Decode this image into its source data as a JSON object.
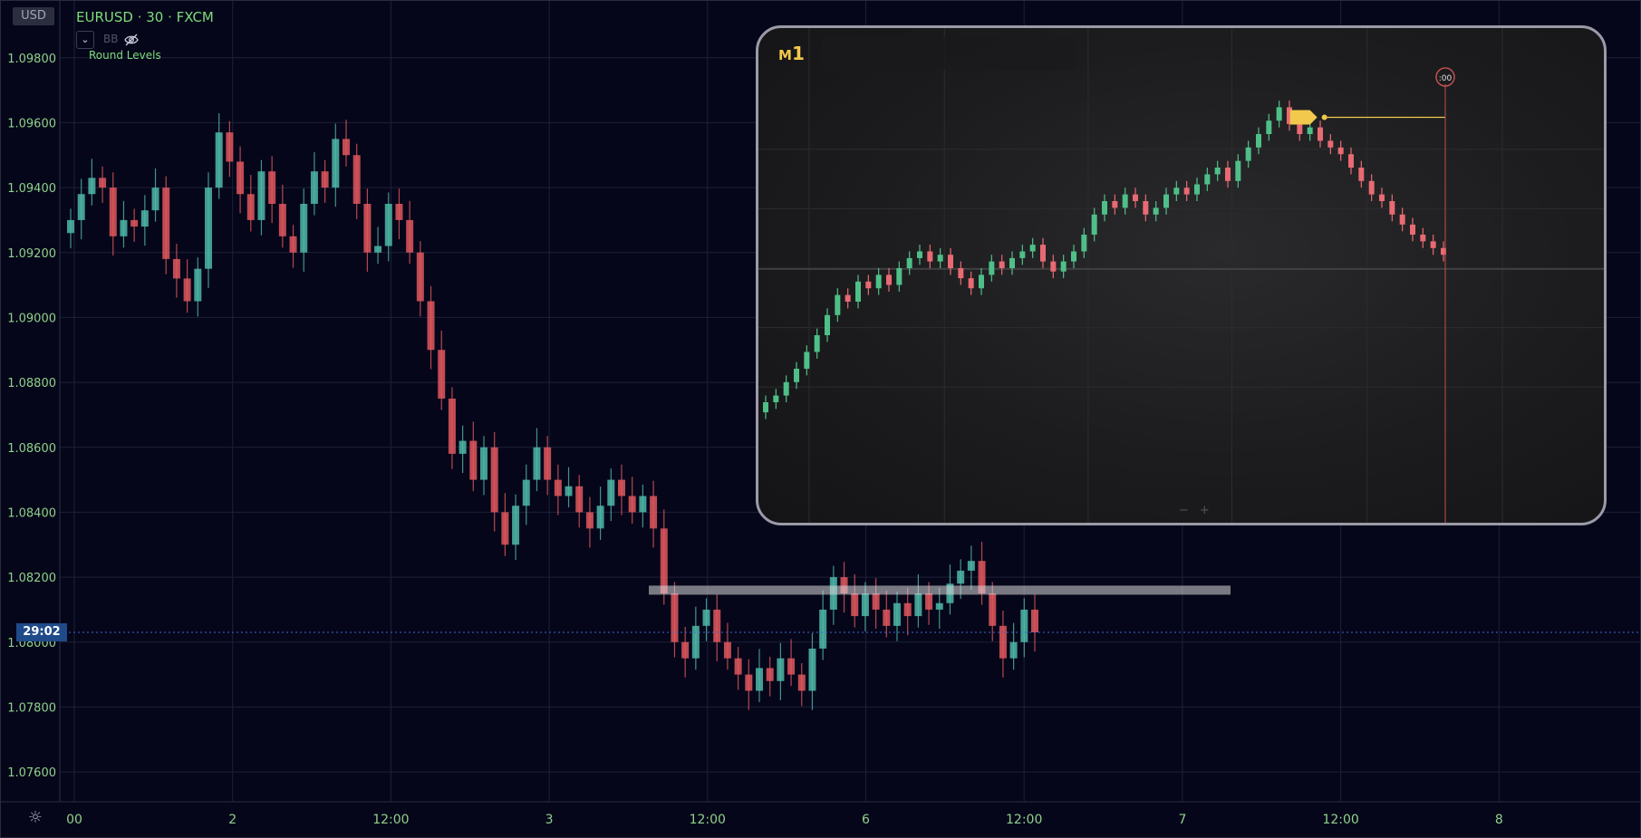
{
  "header": {
    "currency_badge": "USD",
    "symbol_line": "EURUSD · 30 · FXCM",
    "indicator_label": "BB",
    "round_levels_label": "Round Levels",
    "chevron": "⌄",
    "icons": [
      "chevron-down-icon",
      "eye-off-icon",
      "settings-icon"
    ]
  },
  "countdown_badge": "29:02",
  "colors": {
    "background": "#06061a",
    "grid": "#1c2138",
    "up_candle": "#4fb8a8",
    "down_candle": "#e0585e",
    "axis_text": "#8fd18a",
    "countdown_bg": "#1f4a8a",
    "inset_up": "#4fbf88",
    "inset_down": "#e86a72",
    "inset_marker": "#f2c94c"
  },
  "chart_data": [
    {
      "type": "candlestick",
      "title": "EURUSD · 30 · FXCM",
      "xlabel": "",
      "ylabel": "",
      "ylim": [
        1.0755,
        1.0995
      ],
      "y_ticks": [
        "1.09800",
        "1.09600",
        "1.09400",
        "1.09200",
        "1.09000",
        "1.08800",
        "1.08600",
        "1.08400",
        "1.08200",
        "1.08000",
        "1.07800",
        "1.07600"
      ],
      "y_tick_values": [
        1.098,
        1.096,
        1.094,
        1.092,
        1.09,
        1.088,
        1.086,
        1.084,
        1.082,
        1.08,
        1.078,
        1.076
      ],
      "x_ticks": [
        "00",
        "2",
        "12:00",
        "3",
        "12:00",
        "6",
        "12:00",
        "7",
        "12:00",
        "8"
      ],
      "grid": true,
      "current_price": 1.0803,
      "close_series": [
        1.093,
        1.0938,
        1.0943,
        1.094,
        1.0925,
        1.093,
        1.0928,
        1.0933,
        1.094,
        1.0918,
        1.0912,
        1.0905,
        1.0915,
        1.094,
        1.0957,
        1.0948,
        1.0938,
        1.093,
        1.0945,
        1.0935,
        1.0925,
        1.092,
        1.0935,
        1.0945,
        1.094,
        1.0955,
        1.095,
        1.0935,
        1.092,
        1.0922,
        1.0935,
        1.093,
        1.092,
        1.0905,
        1.089,
        1.0875,
        1.0858,
        1.0862,
        1.085,
        1.086,
        1.084,
        1.083,
        1.0842,
        1.085,
        1.086,
        1.085,
        1.0845,
        1.0848,
        1.084,
        1.0835,
        1.0842,
        1.085,
        1.0845,
        1.084,
        1.0845,
        1.0835,
        1.0815,
        1.08,
        1.0795,
        1.0805,
        1.081,
        1.08,
        1.0795,
        1.079,
        1.0785,
        1.0792,
        1.0788,
        1.0795,
        1.079,
        1.0785,
        1.0798,
        1.081,
        1.082,
        1.0815,
        1.0808,
        1.0815,
        1.081,
        1.0805,
        1.0812,
        1.0808,
        1.0815,
        1.081,
        1.0812,
        1.0818,
        1.0822,
        1.0825,
        1.0815,
        1.0805,
        1.0795,
        1.08,
        1.081,
        1.0803
      ]
    },
    {
      "type": "candlestick",
      "title": "M1",
      "xlabel": "",
      "ylabel": "",
      "grid": true,
      "close_series": [
        0.1,
        0.12,
        0.16,
        0.2,
        0.25,
        0.3,
        0.36,
        0.42,
        0.4,
        0.46,
        0.44,
        0.48,
        0.45,
        0.5,
        0.53,
        0.55,
        0.52,
        0.54,
        0.5,
        0.47,
        0.44,
        0.48,
        0.52,
        0.5,
        0.53,
        0.55,
        0.57,
        0.52,
        0.49,
        0.52,
        0.55,
        0.6,
        0.66,
        0.7,
        0.68,
        0.72,
        0.7,
        0.66,
        0.68,
        0.72,
        0.74,
        0.72,
        0.75,
        0.78,
        0.8,
        0.76,
        0.82,
        0.86,
        0.9,
        0.94,
        0.98,
        0.93,
        0.9,
        0.92,
        0.88,
        0.86,
        0.84,
        0.8,
        0.76,
        0.72,
        0.7,
        0.66,
        0.63,
        0.6,
        0.58,
        0.56,
        0.54
      ]
    }
  ],
  "inset": {
    "timeframe_prefix": "M",
    "timeframe_number": "1",
    "zoom_minus": "−",
    "zoom_plus": "+",
    "timer_marker": ":00"
  }
}
